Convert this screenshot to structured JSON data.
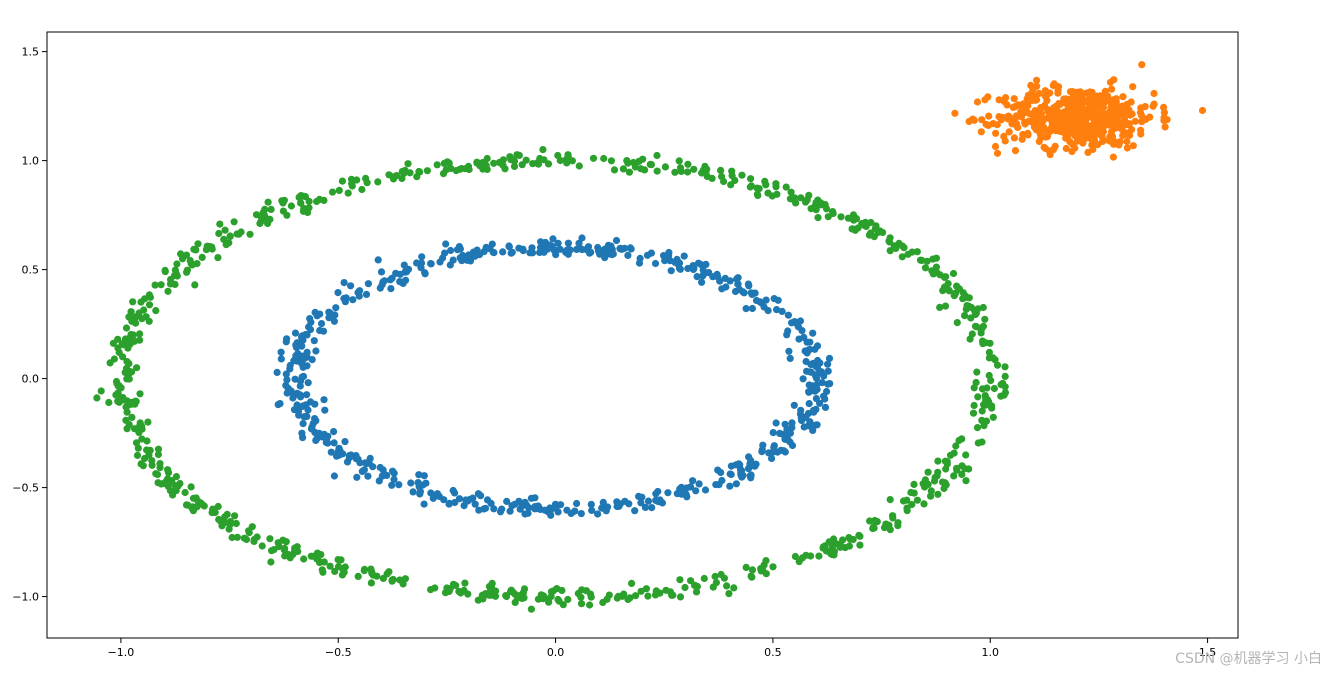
{
  "chart_data": {
    "type": "scatter",
    "title": "",
    "xlabel": "",
    "ylabel": "",
    "xlim": [
      -1.17,
      1.57
    ],
    "ylim": [
      -1.19,
      1.59
    ],
    "xticks": [
      -1.0,
      -0.5,
      0.0,
      0.5,
      1.0,
      1.5
    ],
    "yticks": [
      -1.0,
      -0.5,
      0.0,
      0.5,
      1.0,
      1.5
    ],
    "xtick_labels": [
      "−1.0",
      "−0.5",
      "0.0",
      "0.5",
      "1.0",
      "1.5"
    ],
    "ytick_labels": [
      "−1.0",
      "−0.5",
      "0.0",
      "0.5",
      "1.0",
      "1.5"
    ],
    "grid": false,
    "series": [
      {
        "shape": "ring",
        "color": "#1f77b4",
        "center": [
          0.0,
          0.0
        ],
        "radius_x": 0.6,
        "radius_y": 0.6,
        "count": 600,
        "noise": 0.02
      },
      {
        "shape": "blob",
        "color": "#ff7f0e",
        "center": [
          1.2,
          1.2
        ],
        "spread_x": 0.09,
        "spread_y": 0.07,
        "count": 500
      },
      {
        "shape": "ring",
        "color": "#2ca02c",
        "center": [
          0.0,
          0.0
        ],
        "radius_x": 1.0,
        "radius_y": 1.0,
        "count": 800,
        "noise": 0.02
      }
    ]
  },
  "watermark": "CSDN @机器学习  小白"
}
